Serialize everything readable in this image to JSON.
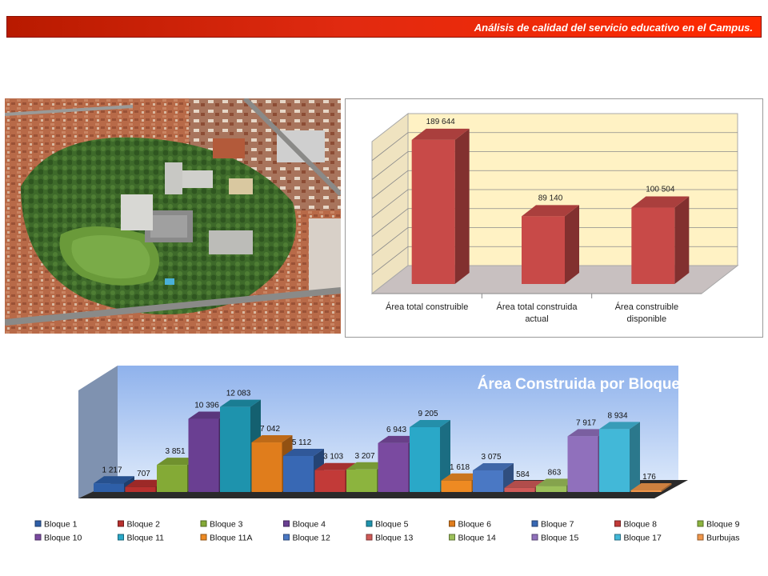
{
  "header": {
    "title": "Análisis de calidad del servicio educativo en el Campus."
  },
  "colors": {
    "header": "#e12a10",
    "chart1_bar": "#c84a48",
    "chart1_wall": "#fff2c4",
    "chart2_wall": "#9fbfef"
  },
  "chart_data": [
    {
      "type": "bar",
      "title": "",
      "categories": [
        "Área total construible",
        "Área total construida actual",
        "Área construible disponible"
      ],
      "values": [
        189644,
        89140,
        100504
      ],
      "value_labels": [
        "189 644",
        "89 140",
        "100 504"
      ],
      "ylim": [
        0,
        200000
      ],
      "grid": true,
      "legend": "none"
    },
    {
      "type": "bar",
      "title": "Área Construida por Bloque",
      "legend_position": "bottom",
      "grid": false,
      "ylim": [
        0,
        12500
      ],
      "series": [
        {
          "name": "Bloque 1",
          "value": 1217,
          "label": "1 217",
          "color": "#2e5fa8"
        },
        {
          "name": "Bloque 2",
          "value": 707,
          "label": "707",
          "color": "#b8302e"
        },
        {
          "name": "Bloque 3",
          "value": 3851,
          "label": "3 851",
          "color": "#84aa36"
        },
        {
          "name": "Bloque 4",
          "value": 10396,
          "label": "10 396",
          "color": "#6a3f92"
        },
        {
          "name": "Bloque 5",
          "value": 12083,
          "label": "12 083",
          "color": "#1e93ad"
        },
        {
          "name": "Bloque 6",
          "value": 7042,
          "label": "7 042",
          "color": "#e07d1c"
        },
        {
          "name": "Bloque 7",
          "value": 5112,
          "label": "5 112",
          "color": "#3868b4"
        },
        {
          "name": "Bloque 8",
          "value": 3103,
          "label": "3 103",
          "color": "#c23a38"
        },
        {
          "name": "Bloque 9",
          "value": 3207,
          "label": "3 207",
          "color": "#8cb43e"
        },
        {
          "name": "Bloque 10",
          "value": 6943,
          "label": "6 943",
          "color": "#7a4aa0"
        },
        {
          "name": "Bloque 11",
          "value": 9205,
          "label": "9 205",
          "color": "#2aa8c8"
        },
        {
          "name": "Bloque 11A",
          "value": 1618,
          "label": "1 618",
          "color": "#ee8a22"
        },
        {
          "name": "Bloque 12",
          "value": 3075,
          "label": "3 075",
          "color": "#4a78c4"
        },
        {
          "name": "Bloque 13",
          "value": 584,
          "label": "584",
          "color": "#d05a58"
        },
        {
          "name": "Bloque 14",
          "value": 863,
          "label": "863",
          "color": "#9cc05a"
        },
        {
          "name": "Bloque 15",
          "value": 7917,
          "label": "7 917",
          "color": "#9070bc"
        },
        {
          "name": "Bloque 17",
          "value": 8934,
          "label": "8 934",
          "color": "#42b8d8"
        },
        {
          "name": "Burbujas",
          "value": 176,
          "label": "176",
          "color": "#f0964a"
        }
      ]
    }
  ]
}
